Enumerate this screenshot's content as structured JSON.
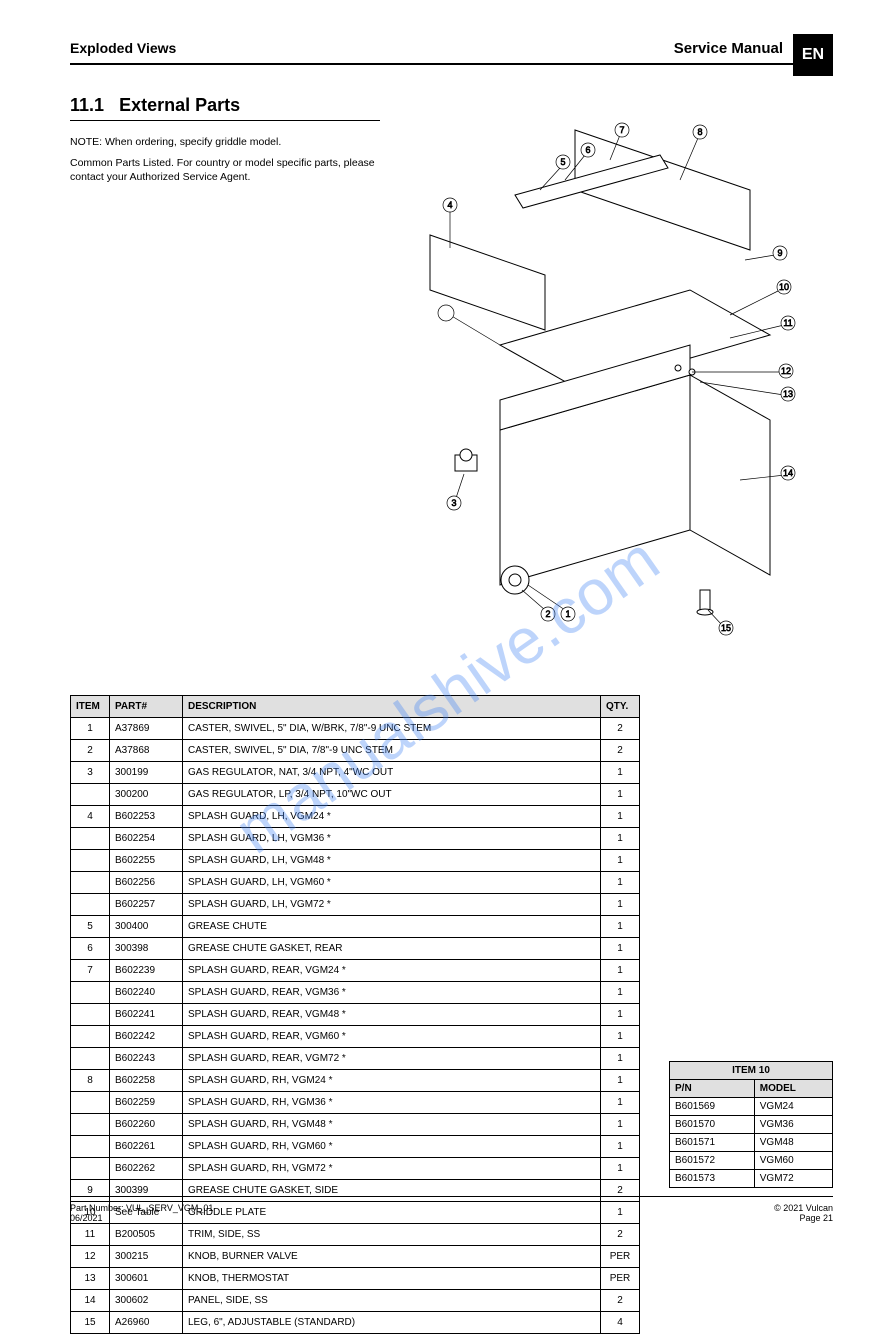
{
  "header": {
    "left": "Exploded Views",
    "right": "Service Manual",
    "lang_code": "EN"
  },
  "section": {
    "number": "11.1",
    "title": "External Parts",
    "intro1": "NOTE: When ordering, specify griddle model.",
    "intro2": "Common Parts Listed. For country or model specific parts, please contact your Authorized Service Agent."
  },
  "diagram": {
    "callouts": [
      "1",
      "2",
      "3",
      "4",
      "5",
      "6",
      "7",
      "8",
      "9",
      "10",
      "11",
      "12",
      "13",
      "14",
      "15"
    ],
    "stroke": "#000000",
    "fill": "#ffffff",
    "callout_radius": 6,
    "font_size": 9
  },
  "watermark": "manualshive.com",
  "parts_table": {
    "columns": [
      "ITEM",
      "PART#",
      "DESCRIPTION",
      "QTY."
    ],
    "rows": [
      [
        "1",
        "A37869",
        "CASTER, SWIVEL, 5\" DIA, W/BRK, 7/8\"-9 UNC STEM",
        "2"
      ],
      [
        "2",
        "A37868",
        "CASTER, SWIVEL, 5\" DIA, 7/8\"-9 UNC STEM",
        "2"
      ],
      [
        "3",
        "300199",
        "GAS REGULATOR, NAT, 3/4 NPT, 4\"WC OUT",
        "1"
      ],
      [
        "",
        "300200",
        "GAS REGULATOR, LP, 3/4 NPT, 10\"WC OUT",
        "1"
      ],
      [
        "4",
        "B602253",
        "SPLASH GUARD, LH, VGM24 *",
        "1"
      ],
      [
        "",
        "B602254",
        "SPLASH GUARD, LH, VGM36 *",
        "1"
      ],
      [
        "",
        "B602255",
        "SPLASH GUARD, LH, VGM48 *",
        "1"
      ],
      [
        "",
        "B602256",
        "SPLASH GUARD, LH, VGM60 *",
        "1"
      ],
      [
        "",
        "B602257",
        "SPLASH GUARD, LH, VGM72 *",
        "1"
      ],
      [
        "5",
        "300400",
        "GREASE CHUTE",
        "1"
      ],
      [
        "6",
        "300398",
        "GREASE CHUTE GASKET, REAR",
        "1"
      ],
      [
        "7",
        "B602239",
        "SPLASH GUARD, REAR, VGM24 *",
        "1"
      ],
      [
        "",
        "B602240",
        "SPLASH GUARD, REAR, VGM36 *",
        "1"
      ],
      [
        "",
        "B602241",
        "SPLASH GUARD, REAR, VGM48 *",
        "1"
      ],
      [
        "",
        "B602242",
        "SPLASH GUARD, REAR, VGM60 *",
        "1"
      ],
      [
        "",
        "B602243",
        "SPLASH GUARD, REAR, VGM72 *",
        "1"
      ],
      [
        "8",
        "B602258",
        "SPLASH GUARD, RH, VGM24 *",
        "1"
      ],
      [
        "",
        "B602259",
        "SPLASH GUARD, RH, VGM36 *",
        "1"
      ],
      [
        "",
        "B602260",
        "SPLASH GUARD, RH, VGM48 *",
        "1"
      ],
      [
        "",
        "B602261",
        "SPLASH GUARD, RH, VGM60 *",
        "1"
      ],
      [
        "",
        "B602262",
        "SPLASH GUARD, RH, VGM72 *",
        "1"
      ],
      [
        "9",
        "300399",
        "GREASE CHUTE GASKET, SIDE",
        "2"
      ],
      [
        "10",
        "See Table",
        "GRIDDLE PLATE",
        "1"
      ],
      [
        "11",
        "B200505",
        "TRIM, SIDE, SS",
        "2"
      ],
      [
        "12",
        "300215",
        "KNOB, BURNER VALVE",
        "PER"
      ],
      [
        "13",
        "300601",
        "KNOB, THERMOSTAT",
        "PER"
      ],
      [
        "14",
        "300602",
        "PANEL, SIDE, SS",
        "2"
      ],
      [
        "15",
        "A26960",
        "LEG, 6\", ADJUSTABLE (STANDARD)",
        "4"
      ]
    ]
  },
  "legend_table": {
    "header": "ITEM 10",
    "columns": [
      "P/N",
      "MODEL"
    ],
    "rows": [
      [
        "B601569",
        "VGM24"
      ],
      [
        "B601570",
        "VGM36"
      ],
      [
        "B601571",
        "VGM48"
      ],
      [
        "B601572",
        "VGM60"
      ],
      [
        "B601573",
        "VGM72"
      ]
    ]
  },
  "footer": {
    "left_line1": "Part Number: VUL_SERV_VGM_01",
    "left_line2": "06/2021",
    "right_line1": "© 2021 Vulcan",
    "right_line2": "Page 21"
  }
}
